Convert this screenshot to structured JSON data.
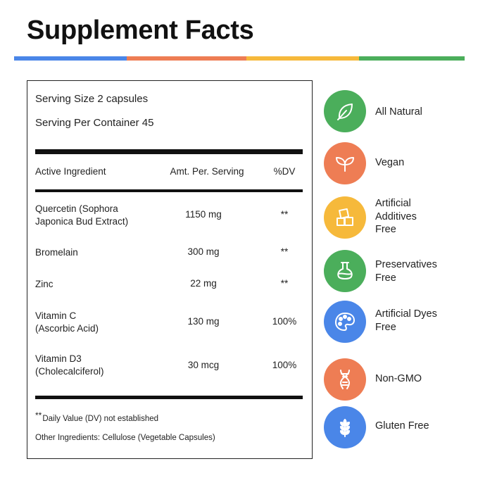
{
  "title": "Supplement Facts",
  "colors": {
    "blue": "#4A86E8",
    "orange": "#EE7D54",
    "yellow": "#F6B93B",
    "green": "#4BAE5B"
  },
  "panel": {
    "serving_size": "Serving Size  2 capsules",
    "servings_per_container": "Serving Per Container 45",
    "headers": {
      "ingredient": "Active Ingredient",
      "amount": "Amt. Per. Serving",
      "dv": "%DV"
    },
    "rows": [
      {
        "name": "Quercetin (Sophora\nJaponica Bud Extract)",
        "amount": "1150 mg",
        "dv": "**"
      },
      {
        "name": "Bromelain",
        "amount": "300 mg",
        "dv": "**"
      },
      {
        "name": "Zinc",
        "amount": "22 mg",
        "dv": "**"
      },
      {
        "name": "Vitamin C\n(Ascorbic Acid)",
        "amount": "130 mg",
        "dv": "100%"
      },
      {
        "name": "Vitamin D3\n(Cholecalciferol)",
        "amount": "30 mcg",
        "dv": "100%"
      }
    ],
    "footnote_mark": "**",
    "footnote": "Daily Value (DV) not established",
    "other_ingredients": "Other Ingredients: Cellulose (Vegetable Capsules)"
  },
  "badges": [
    {
      "label": "All Natural",
      "icon": "leaf-icon",
      "color": "#4BAE5B"
    },
    {
      "label": "Vegan",
      "icon": "sprout-icon",
      "color": "#EE7D54"
    },
    {
      "label": "Artificial\nAdditives\nFree",
      "icon": "sugar-cubes-icon",
      "color": "#F6B93B"
    },
    {
      "label": "Preservatives\nFree",
      "icon": "flask-icon",
      "color": "#4BAE5B"
    },
    {
      "label": "Artificial Dyes\nFree",
      "icon": "palette-icon",
      "color": "#4A86E8"
    },
    {
      "label": "Non-GMO",
      "icon": "dna-icon",
      "color": "#EE7D54"
    },
    {
      "label": "Gluten Free",
      "icon": "wheat-icon",
      "color": "#4A86E8"
    }
  ]
}
